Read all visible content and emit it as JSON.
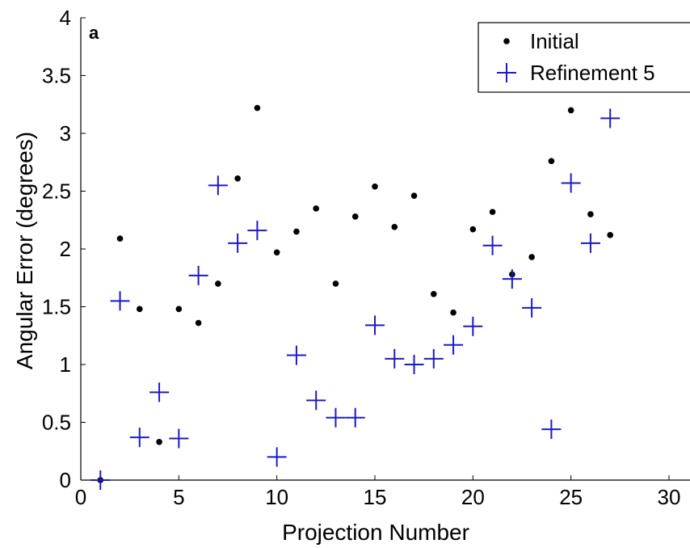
{
  "chart_data": {
    "type": "scatter",
    "panel_label": "a",
    "xlabel": "Projection Number",
    "ylabel": "Angular Error (degrees)",
    "xlim": [
      0,
      30
    ],
    "ylim": [
      0,
      4
    ],
    "xticks": [
      0,
      5,
      10,
      15,
      20,
      25,
      30
    ],
    "yticks": [
      0,
      0.5,
      1,
      1.5,
      2,
      2.5,
      3,
      3.5,
      4
    ],
    "ytick_labels": [
      "0",
      "0.5",
      "1",
      "1.5",
      "2",
      "2.5",
      "3",
      "3.5",
      "4"
    ],
    "grid": false,
    "legend_position": "top-right",
    "series": [
      {
        "name": "Initial",
        "marker": "dot",
        "color": "#000000",
        "x": [
          1,
          2,
          3,
          4,
          5,
          6,
          7,
          8,
          9,
          10,
          11,
          12,
          13,
          14,
          15,
          16,
          17,
          18,
          19,
          20,
          21,
          22,
          23,
          24,
          25,
          26,
          27
        ],
        "y": [
          0,
          2.09,
          1.48,
          0.33,
          1.48,
          1.36,
          1.7,
          2.61,
          3.22,
          1.97,
          2.15,
          2.35,
          1.7,
          2.28,
          2.54,
          2.19,
          2.46,
          1.61,
          1.45,
          2.17,
          2.32,
          1.78,
          1.93,
          2.76,
          3.2,
          2.3,
          2.12
        ]
      },
      {
        "name": "Refinement 5",
        "marker": "plus",
        "color": "#1a1acc",
        "x": [
          1,
          2,
          3,
          4,
          5,
          6,
          7,
          8,
          9,
          10,
          11,
          12,
          13,
          14,
          15,
          16,
          17,
          18,
          19,
          20,
          21,
          22,
          23,
          24,
          25,
          26,
          27
        ],
        "y": [
          0,
          1.55,
          0.37,
          0.76,
          0.36,
          1.77,
          2.55,
          2.05,
          2.16,
          0.2,
          1.08,
          0.69,
          0.54,
          0.54,
          1.34,
          1.05,
          1.0,
          1.05,
          1.17,
          1.33,
          2.03,
          1.74,
          1.49,
          0.44,
          2.57,
          2.05,
          3.13
        ]
      }
    ]
  }
}
